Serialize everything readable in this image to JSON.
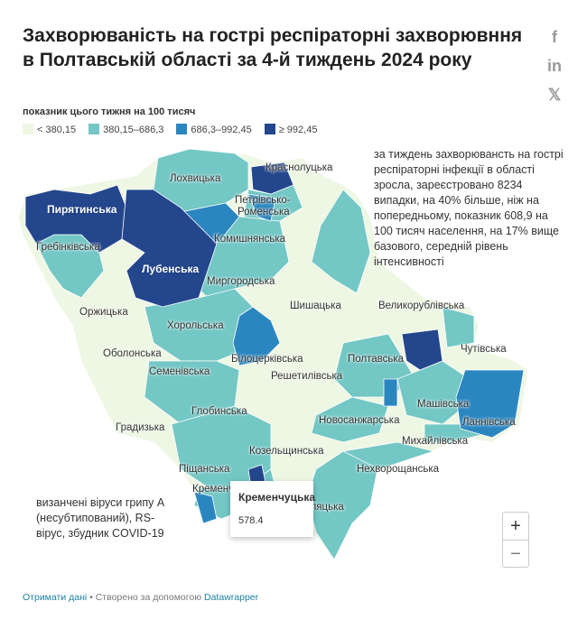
{
  "title": "Захворюваність на гострі респіраторні захворювння в Полтавській області за 4-й тиждень 2024 року",
  "social": [
    "facebook-icon",
    "linkedin-icon",
    "x-icon"
  ],
  "legend": {
    "title": "показник цього тижня на 100 тисяч",
    "items": [
      {
        "label": "< 380,15",
        "color": "#eef7e4"
      },
      {
        "label": "380,15–686,3",
        "color": "#73c7c5"
      },
      {
        "label": "686,3–992,45",
        "color": "#2b86c0"
      },
      {
        "label": "≥ 992,45",
        "color": "#24468c"
      }
    ]
  },
  "regions": [
    "Лохвицька",
    "Краснолуцька",
    "Петрівсько-",
    "Роменська",
    "Пирятинська",
    "Гребінківська",
    "Комишнянська",
    "Лубенська",
    "Миргородська",
    "Оржицька",
    "Шишацька",
    "Великорублівська",
    "Хорольська",
    "Оболонська",
    "Білоцерківська",
    "Чутівська",
    "Семенівська",
    "Полтавська",
    "Решетилівська",
    "Машівська",
    "Ланнівська",
    "Глобинська",
    "Новосанжарська",
    "Градизька",
    "Михайлівська",
    "Козельщинська",
    "Нехворощанська",
    "Піщанська",
    "Кременчуцька",
    "Кобеляцька"
  ],
  "note1": "за тиждень захворюванcть на гострі респіраторні інфекції в області зросла, зареєстровано 8234 випадки, на 40% більше, ніж на попередньому, показник 608,9 на 100 тисяч населення, на 17% вище базового, середній рівень інтенсивності",
  "note2": "визанчені віруси грипу А (несубтипований), RS-вірус, збудник COVID-19",
  "tooltip": {
    "name": "Кременчуцька",
    "value": "578.4"
  },
  "zoom": {
    "in": "+",
    "out": "−"
  },
  "footer": {
    "get_data": "Отримати дані",
    "sep": " • Створено за допомогою ",
    "tool": "Datawrapper"
  }
}
